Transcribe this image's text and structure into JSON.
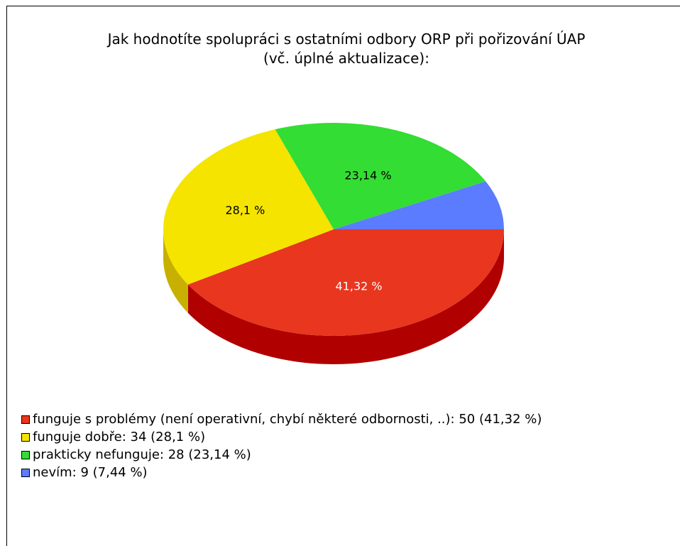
{
  "chart_data": {
    "type": "pie",
    "title": [
      "Jak hodnotíte spolupráci s ostatními odbory ORP při pořizování ÚAP",
      "(vč. úplné aktualizace):"
    ],
    "values": [
      41.32,
      28.1,
      23.14,
      7.44
    ],
    "value_labels": [
      "41,32 %",
      "28,1 %",
      "23,14 %",
      null
    ],
    "colors": [
      "#e8361f",
      "#f5e400",
      "#33dd33",
      "#5c7cff"
    ],
    "side_colors": [
      "#b00000",
      "#c8b000",
      "#1a9a1a",
      "#2a40b0"
    ],
    "legend": [
      "funguje s problémy (není operativní, chybí některé odbornosti, ..): 50 (41,32 %)",
      "funguje dobře: 34 (28,1 %)",
      "prakticky nefunguje: 28 (23,14 %)",
      "nevím: 9 (7,44 %)"
    ]
  }
}
